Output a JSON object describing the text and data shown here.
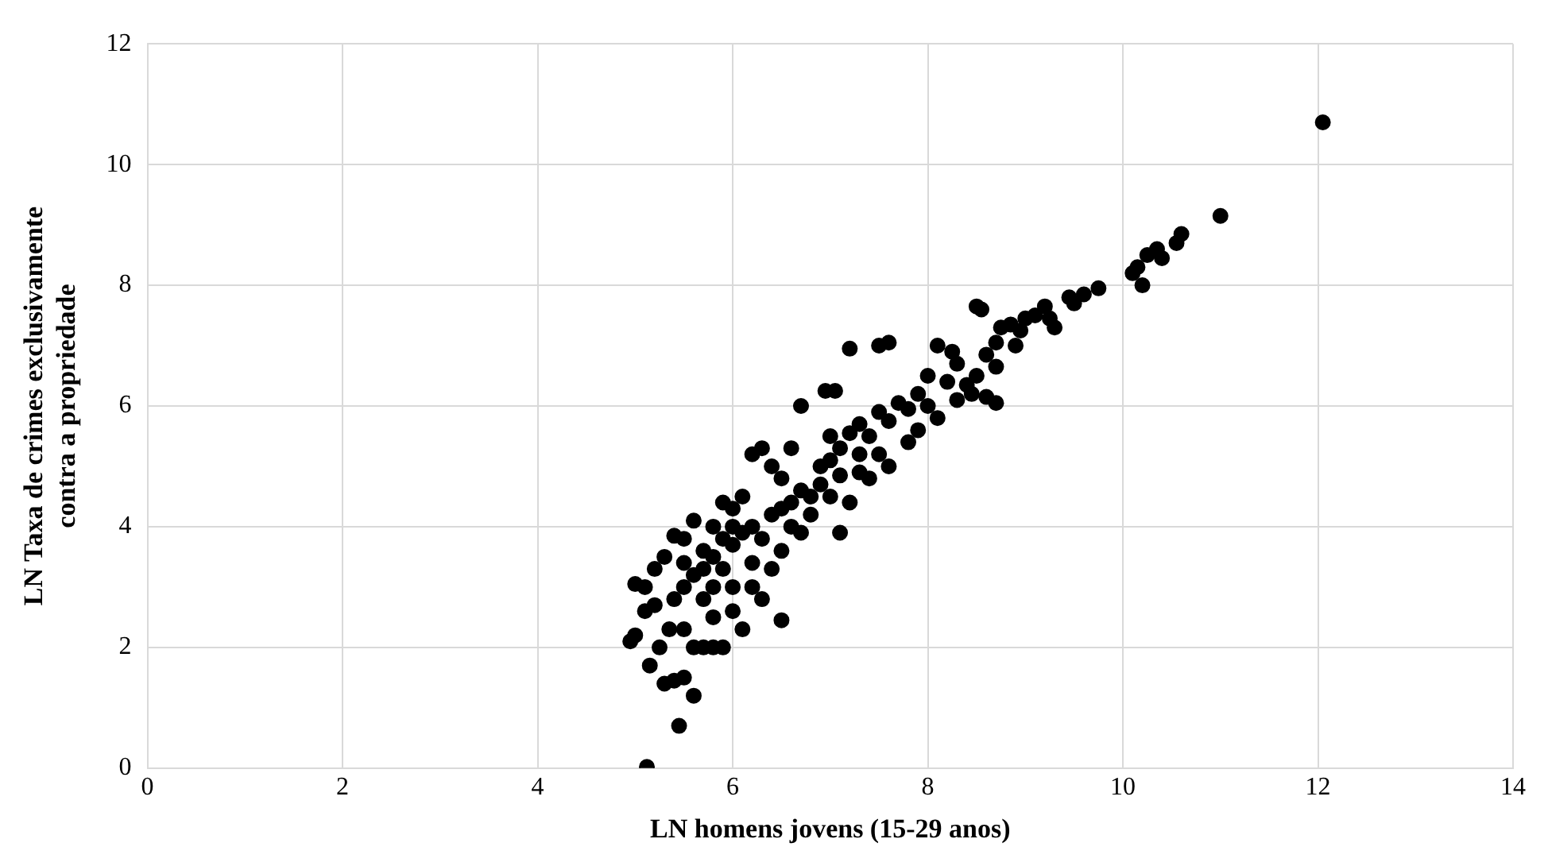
{
  "chart_data": {
    "type": "scatter",
    "xlabel": "LN homens jovens (15-29 anos)",
    "ylabel": "LN Taxa de crimes exclusivamente\ncontra a propriedade",
    "xlim": [
      0,
      14
    ],
    "xticks": [
      0,
      2,
      4,
      6,
      8,
      10,
      12,
      14
    ],
    "ylim": [
      0,
      12
    ],
    "yticks": [
      0,
      2,
      4,
      6,
      8,
      10,
      12
    ],
    "grid": true,
    "marker": "circle",
    "legend": false,
    "series": [
      {
        "color": "#000000",
        "x": [
          12.05,
          11.0,
          10.6,
          10.55,
          10.35,
          10.25,
          10.15,
          10.1,
          10.2,
          10.4,
          9.75,
          9.6,
          9.5,
          9.45,
          9.25,
          9.2,
          9.1,
          9.0,
          8.95,
          8.85,
          8.75,
          8.7,
          8.55,
          8.5,
          8.6,
          8.7,
          8.5,
          8.4,
          8.3,
          8.25,
          8.1,
          8.6,
          8.7,
          8.45,
          8.2,
          8.0,
          7.9,
          7.8,
          7.7,
          7.6,
          7.5,
          7.4,
          7.3,
          7.2,
          7.1,
          7.0,
          7.6,
          7.5,
          7.2,
          7.05,
          6.95,
          6.7,
          7.5,
          7.8,
          7.1,
          7.1,
          6.9,
          6.8,
          6.6,
          6.5,
          6.4,
          6.3,
          6.2,
          6.6,
          6.9,
          7.3,
          6.7,
          6.5,
          6.4,
          6.5,
          6.2,
          6.1,
          6.0,
          5.9,
          6.0,
          6.1,
          5.8,
          5.7,
          5.6,
          5.5,
          5.4,
          5.3,
          5.2,
          5.1,
          5.0,
          5.2,
          5.1,
          5.0,
          4.95,
          5.15,
          5.3,
          5.4,
          5.5,
          5.6,
          5.45,
          5.12,
          5.6,
          5.7,
          5.8,
          5.9,
          6.1,
          6.0,
          5.8,
          5.5,
          5.4,
          5.5,
          5.6,
          5.7,
          5.8,
          5.9,
          6.0,
          6.2,
          6.3,
          5.7,
          5.5,
          5.9,
          6.3,
          6.4,
          6.6,
          6.8,
          7.0,
          7.2,
          7.4,
          7.6,
          7.9,
          8.1,
          8.3,
          5.35,
          5.25,
          6.2,
          6.0,
          5.8,
          6.5,
          6.7,
          7.0,
          7.3,
          8.0,
          8.9,
          9.3
        ],
        "values": [
          10.7,
          9.15,
          8.85,
          8.7,
          8.6,
          8.5,
          8.3,
          8.2,
          8.0,
          8.45,
          7.95,
          7.85,
          7.7,
          7.8,
          7.45,
          7.65,
          7.5,
          7.45,
          7.25,
          7.35,
          7.3,
          7.05,
          7.6,
          7.65,
          6.85,
          6.65,
          6.5,
          6.35,
          6.7,
          6.9,
          7.0,
          6.15,
          6.05,
          6.2,
          6.4,
          6.5,
          6.2,
          5.95,
          6.05,
          5.75,
          5.9,
          5.5,
          5.7,
          5.55,
          5.3,
          5.1,
          7.05,
          7.0,
          6.95,
          6.25,
          6.25,
          6.0,
          5.2,
          5.4,
          4.85,
          3.9,
          4.7,
          4.5,
          4.4,
          4.8,
          5.0,
          5.3,
          5.2,
          5.3,
          5.0,
          4.9,
          3.9,
          3.6,
          3.3,
          2.45,
          3.4,
          4.5,
          4.3,
          4.4,
          3.7,
          3.9,
          4.0,
          3.6,
          4.1,
          3.8,
          3.85,
          3.5,
          3.3,
          3.0,
          3.05,
          2.7,
          2.6,
          2.2,
          2.1,
          1.7,
          1.4,
          1.45,
          1.5,
          1.2,
          0.7,
          0.02,
          2.0,
          2.0,
          2.0,
          2.0,
          2.3,
          2.6,
          2.5,
          2.3,
          2.8,
          3.0,
          3.2,
          2.8,
          3.0,
          3.3,
          3.0,
          3.0,
          2.8,
          3.3,
          3.4,
          3.8,
          3.8,
          4.2,
          4.0,
          4.2,
          4.5,
          4.4,
          4.8,
          5.0,
          5.6,
          5.8,
          6.1,
          2.3,
          2.0,
          4.0,
          4.0,
          3.5,
          4.3,
          4.6,
          5.5,
          5.2,
          6.0,
          7.0,
          7.3
        ]
      }
    ]
  }
}
